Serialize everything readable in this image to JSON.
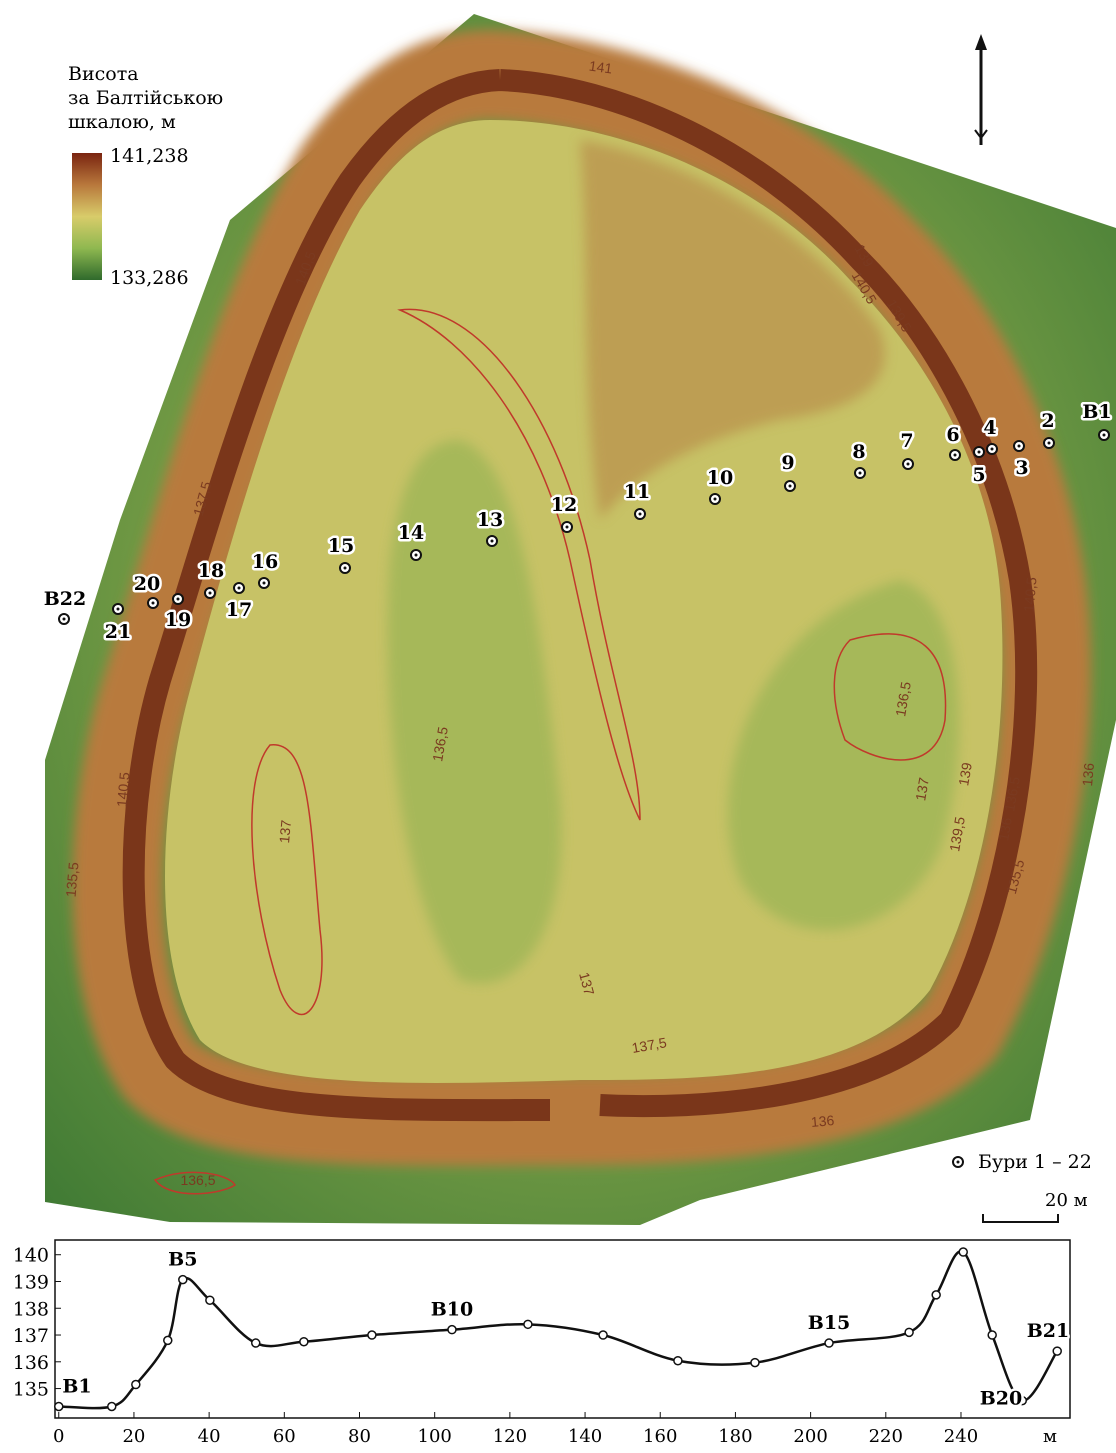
{
  "map": {
    "legend_title": [
      "Висота",
      "за Балтійською",
      "шкалою, м"
    ],
    "legend_max": "141,238",
    "legend_min": "133,286",
    "boreholes": [
      "В1",
      "2",
      "3",
      "4",
      "5",
      "6",
      "7",
      "8",
      "9",
      "10",
      "11",
      "12",
      "13",
      "14",
      "15",
      "16",
      "17",
      "18",
      "19",
      "20",
      "21",
      "В22"
    ],
    "contour_labels": [
      "141",
      "139",
      "140,5",
      "139,5",
      "140,5",
      "137,5",
      "136,5",
      "136,5",
      "137",
      "137",
      "137",
      "137,5",
      "136",
      "136,5",
      "135,5",
      "140,5",
      "136",
      "135,5",
      "139,5",
      "139",
      "136,5",
      "136",
      "140,5"
    ],
    "borehole_legend": "Бури 1 – 22",
    "scale_label": "20 м"
  },
  "chart_data": {
    "type": "line",
    "x": [
      0,
      14.1,
      20.5,
      29.0,
      33.0,
      40.2,
      52.4,
      65.2,
      83.3,
      104.6,
      124.8,
      144.8,
      164.7,
      185.2,
      204.9,
      226.2,
      233.4,
      240.6,
      248.3,
      256.3,
      265.6
    ],
    "series": [
      {
        "color": "#111111",
        "values": [
          134.33,
          134.33,
          135.15,
          136.8,
          139.07,
          138.3,
          136.7,
          136.75,
          137.0,
          137.2,
          137.4,
          137.0,
          136.04,
          135.97,
          136.7,
          137.1,
          138.5,
          140.1,
          137.0,
          134.55,
          136.4
        ]
      }
    ],
    "point_labels": [
      "В1",
      null,
      null,
      null,
      "В5",
      null,
      null,
      null,
      null,
      "В10",
      null,
      null,
      null,
      null,
      "В15",
      null,
      null,
      null,
      null,
      "В20",
      "В21"
    ],
    "x_label": "м",
    "xlim": [
      -1,
      269
    ],
    "ylim": [
      133.9,
      140.55
    ],
    "xticks": [
      0,
      20,
      40,
      60,
      80,
      100,
      120,
      140,
      160,
      180,
      200,
      220,
      240
    ],
    "yticks": [
      135,
      136,
      137,
      138,
      139,
      140
    ]
  }
}
